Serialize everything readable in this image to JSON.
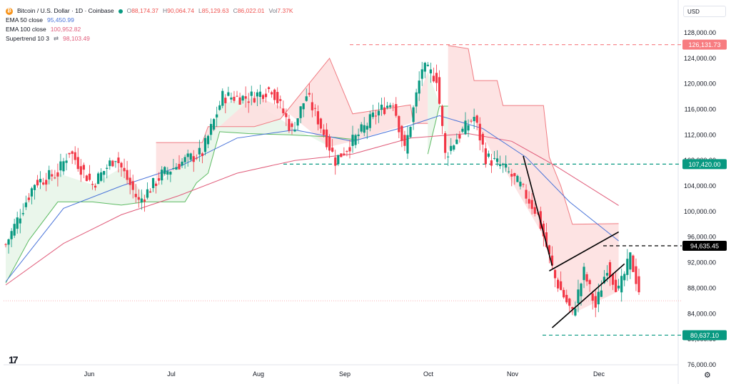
{
  "header": {
    "symbol_title": "Bitcoin / U.S. Dollar · 1D · Coinbase",
    "icon": "bitcoin-coin-icon",
    "o_label": "O",
    "o_value": "88,174.37",
    "h_label": "H",
    "h_value": "90,064.74",
    "l_label": "L",
    "l_value": "85,129.63",
    "c_label": "C",
    "c_value": "86,022.01",
    "vol_label": "Vol",
    "vol_value": "7.37K",
    "indicators": [
      {
        "name": "EMA 50 close",
        "value": "95,450.99",
        "color": "#4a74d9"
      },
      {
        "name": "EMA 100 close",
        "value": "100,952.82",
        "color": "#e05c7a"
      },
      {
        "name": "Supertrend 10 3",
        "glyph": "⇄",
        "value": "98,103.49",
        "color": "#e05c7a"
      }
    ]
  },
  "currency_selector": "USD",
  "colors": {
    "up": "#089981",
    "down": "#f23645",
    "ema50": "#4a74d9",
    "ema100": "#e05c7a",
    "st_up_fill": "#e8f5e9",
    "st_down_fill": "#fde0e0"
  },
  "chart_data": {
    "type": "candlestick",
    "ylim": [
      76000,
      130000
    ],
    "y_ticks": [
      "76,000.00",
      "80,000.00",
      "84,000.00",
      "88,000.00",
      "92,000.00",
      "96,000.00",
      "100,000.00",
      "104,000.00",
      "108,000.00",
      "112,000.00",
      "116,000.00",
      "120,000.00",
      "124,000.00",
      "128,000.00"
    ],
    "x_labels": [
      "Jun",
      "Jul",
      "Aug",
      "Sep",
      "Oct",
      "Nov",
      "Dec"
    ],
    "price_levels": [
      {
        "value": 126131.73,
        "label": "126,131.73",
        "style": "dashed",
        "color": "#f77c80",
        "bg": "#f77c80"
      },
      {
        "value": 107420,
        "label": "107,420.00",
        "style": "dashed",
        "color": "#089981",
        "bg": "#089981"
      },
      {
        "value": 94635.45,
        "label": "94,635.45",
        "style": "dashed",
        "color": "#000000",
        "bg": "#000000"
      },
      {
        "value": 80637.1,
        "label": "80,637.10",
        "style": "dashed",
        "color": "#089981",
        "bg": "#089981"
      },
      {
        "value": 86022.01,
        "label": "",
        "style": "dotted",
        "color": "#f7a8ab",
        "bg": ""
      }
    ],
    "candles": {
      "count": 192,
      "keyframes": [
        [
          0,
          94800
        ],
        [
          10,
          104500
        ],
        [
          18,
          106000
        ],
        [
          22,
          109500
        ],
        [
          30,
          104200
        ],
        [
          38,
          108600
        ],
        [
          46,
          101500
        ],
        [
          54,
          105800
        ],
        [
          62,
          108000
        ],
        [
          68,
          109200
        ],
        [
          75,
          118000
        ],
        [
          84,
          117800
        ],
        [
          92,
          119300
        ],
        [
          99,
          112600
        ],
        [
          104,
          118200
        ],
        [
          108,
          114400
        ],
        [
          114,
          108000
        ],
        [
          121,
          111500
        ],
        [
          128,
          115300
        ],
        [
          134,
          117300
        ],
        [
          138,
          109500
        ],
        [
          144,
          122500
        ],
        [
          149,
          121000
        ],
        [
          152,
          108800
        ],
        [
          156,
          111500
        ],
        [
          162,
          114800
        ],
        [
          166,
          108500
        ],
        [
          172,
          107000
        ],
        [
          178,
          104000
        ],
        [
          184,
          99500
        ],
        [
          190,
          89500
        ],
        [
          196,
          84000
        ],
        [
          200,
          90500
        ],
        [
          204,
          85000
        ],
        [
          208,
          91500
        ],
        [
          212,
          87500
        ],
        [
          216,
          92800
        ],
        [
          220,
          86000
        ]
      ]
    },
    "ema50": [
      [
        0,
        89000
      ],
      [
        20,
        100500
      ],
      [
        40,
        104000
      ],
      [
        60,
        107000
      ],
      [
        80,
        111500
      ],
      [
        100,
        112800
      ],
      [
        120,
        111000
      ],
      [
        140,
        113500
      ],
      [
        150,
        115000
      ],
      [
        165,
        113000
      ],
      [
        180,
        108500
      ],
      [
        195,
        101500
      ],
      [
        212,
        95400
      ]
    ],
    "ema100": [
      [
        0,
        88500
      ],
      [
        20,
        95000
      ],
      [
        40,
        99500
      ],
      [
        60,
        102500
      ],
      [
        80,
        106000
      ],
      [
        100,
        108000
      ],
      [
        120,
        109000
      ],
      [
        140,
        111500
      ],
      [
        160,
        112200
      ],
      [
        175,
        111000
      ],
      [
        190,
        107200
      ],
      [
        212,
        100950
      ]
    ],
    "supertrend": [
      {
        "dir": "up",
        "points": [
          [
            0,
            88800
          ],
          [
            8,
            95500
          ],
          [
            18,
            101500
          ],
          [
            30,
            101500
          ],
          [
            40,
            101000
          ],
          [
            48,
            101500
          ],
          [
            62,
            101500
          ],
          [
            66,
            104500
          ],
          [
            70,
            106000
          ],
          [
            74,
            112500
          ],
          [
            84,
            112200
          ],
          [
            98,
            112000
          ],
          [
            112,
            111700
          ],
          [
            122,
            111200
          ]
        ]
      },
      {
        "dir": "down",
        "points": [
          [
            52,
            110800
          ],
          [
            68,
            110800
          ],
          [
            70,
            113300
          ],
          [
            86,
            113300
          ],
          [
            95,
            114500
          ],
          [
            112,
            124000
          ],
          [
            120,
            115300
          ],
          [
            140,
            116700
          ],
          [
            141,
            113800
          ],
          [
            146,
            113800
          ]
        ]
      },
      {
        "dir": "up",
        "points": [
          [
            146,
            109000
          ],
          [
            150,
            116500
          ],
          [
            153,
            116500
          ]
        ]
      },
      {
        "dir": "down",
        "points": [
          [
            153,
            126000
          ],
          [
            160,
            125500
          ],
          [
            162,
            120500
          ],
          [
            170,
            120500
          ],
          [
            172,
            116600
          ],
          [
            186,
            116600
          ],
          [
            188,
            108500
          ],
          [
            192,
            104000
          ],
          [
            196,
            98000
          ],
          [
            212,
            98100
          ]
        ]
      }
    ],
    "trend_lines": [
      [
        [
          179,
          108700
        ],
        [
          189,
          91500
        ]
      ],
      [
        [
          188,
          90700
        ],
        [
          212,
          96800
        ]
      ],
      [
        [
          189,
          81800
        ],
        [
          214,
          91800
        ]
      ]
    ]
  }
}
